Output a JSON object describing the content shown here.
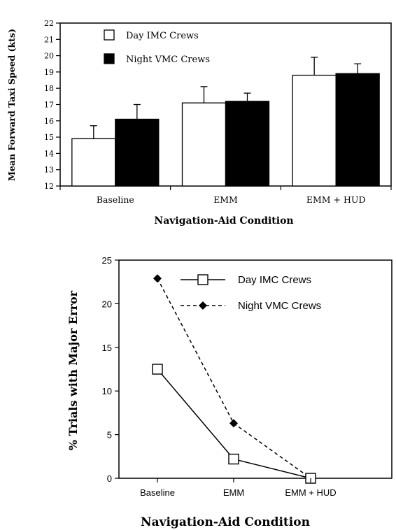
{
  "chart_data": [
    {
      "type": "bar",
      "title": "",
      "xlabel": "Navigation-Aid Condition",
      "ylabel": "Mean Forward Taxi Speed (kts)",
      "categories": [
        "Baseline",
        "EMM",
        "EMM + HUD"
      ],
      "ylim": [
        12,
        22
      ],
      "yticks": [
        "12",
        "13",
        "14",
        "15",
        "16",
        "17",
        "18",
        "19",
        "20",
        "21",
        "22"
      ],
      "series": [
        {
          "name": "Day IMC Crews",
          "values": [
            14.9,
            17.1,
            18.8
          ],
          "error_up": [
            0.8,
            1.0,
            1.1
          ],
          "color": "#ffffff"
        },
        {
          "name": "Night VMC Crews",
          "values": [
            16.1,
            17.2,
            18.9
          ],
          "error_up": [
            0.9,
            0.5,
            0.6
          ],
          "color": "#000000"
        }
      ],
      "legend": "top-left",
      "grid": false
    },
    {
      "type": "line",
      "title": "",
      "xlabel": "Navigation-Aid Condition",
      "ylabel": "% Trials with Major Error",
      "categories": [
        "Baseline",
        "EMM",
        "EMM + HUD"
      ],
      "ylim": [
        0,
        25
      ],
      "yticks": [
        "0",
        "5",
        "10",
        "15",
        "20",
        "25"
      ],
      "series": [
        {
          "name": "Day IMC Crews",
          "values": [
            12.5,
            2.2,
            0
          ],
          "marker": "open-square",
          "line": "solid"
        },
        {
          "name": "Night VMC Crews",
          "values": [
            22.9,
            6.3,
            0
          ],
          "marker": "filled-diamond",
          "line": "dashed"
        }
      ],
      "legend": "top-right",
      "grid": false
    }
  ]
}
